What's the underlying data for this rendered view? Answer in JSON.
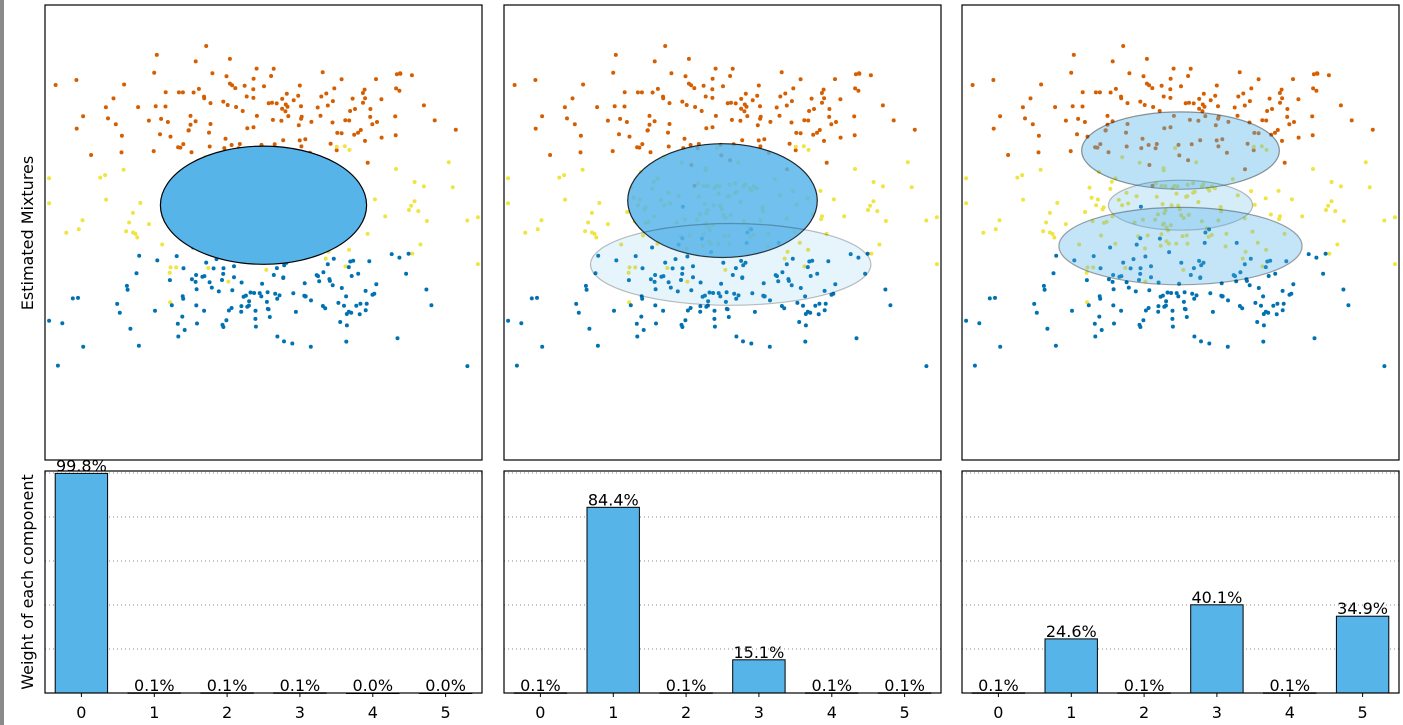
{
  "labels": {
    "top_ylabel": "Estimated Mixtures",
    "bottom_ylabel": "Weight of each component"
  },
  "colors": {
    "bar": "#56b4e9",
    "orange": "#d55e00",
    "yellow": "#f0e442",
    "blue": "#0072b2",
    "ellipse": "#56b4e9"
  },
  "chart_data": [
    {
      "type": "scatter",
      "panel": "mixtures-1",
      "series": [
        {
          "name": "",
          "color": "#d55e00",
          "cx": 0,
          "cy": 2.6,
          "sx": 2.2,
          "sy": 0.6,
          "n": 150
        },
        {
          "name": "",
          "color": "#f0e442",
          "cx": 0,
          "cy": 0.5,
          "sx": 2.2,
          "sy": 0.6,
          "n": 150
        },
        {
          "name": "",
          "color": "#0072b2",
          "cx": 0,
          "cy": -1.4,
          "sx": 2.2,
          "sy": 0.6,
          "n": 150
        }
      ],
      "ellipses": [
        {
          "cx": 0.0,
          "cy": 0.6,
          "rx": 2.5,
          "ry": 1.3,
          "opacity": 1.0
        }
      ]
    },
    {
      "type": "scatter",
      "panel": "mixtures-2",
      "series": [
        {
          "name": "",
          "color": "#d55e00",
          "cx": 0,
          "cy": 2.6,
          "sx": 2.2,
          "sy": 0.6,
          "n": 150
        },
        {
          "name": "",
          "color": "#f0e442",
          "cx": 0,
          "cy": 0.5,
          "sx": 2.2,
          "sy": 0.6,
          "n": 150
        },
        {
          "name": "",
          "color": "#0072b2",
          "cx": 0,
          "cy": -1.4,
          "sx": 2.2,
          "sy": 0.6,
          "n": 150
        }
      ],
      "ellipses": [
        {
          "cx": 0.0,
          "cy": 0.7,
          "rx": 2.3,
          "ry": 1.25,
          "opacity": 0.84
        },
        {
          "cx": 0.2,
          "cy": -0.7,
          "rx": 3.4,
          "ry": 0.9,
          "opacity": 0.15
        }
      ]
    },
    {
      "type": "scatter",
      "panel": "mixtures-3",
      "series": [
        {
          "name": "",
          "color": "#d55e00",
          "cx": 0,
          "cy": 2.6,
          "sx": 2.2,
          "sy": 0.6,
          "n": 150
        },
        {
          "name": "",
          "color": "#f0e442",
          "cx": 0,
          "cy": 0.5,
          "sx": 2.2,
          "sy": 0.6,
          "n": 150
        },
        {
          "name": "",
          "color": "#0072b2",
          "cx": 0,
          "cy": -1.4,
          "sx": 2.2,
          "sy": 0.6,
          "n": 150
        }
      ],
      "ellipses": [
        {
          "cx": 0.0,
          "cy": 1.8,
          "rx": 2.4,
          "ry": 0.85,
          "opacity": 0.4
        },
        {
          "cx": 0.0,
          "cy": 0.6,
          "rx": 1.75,
          "ry": 0.55,
          "opacity": 0.25
        },
        {
          "cx": 0.0,
          "cy": -0.3,
          "rx": 2.95,
          "ry": 0.85,
          "opacity": 0.35
        }
      ]
    },
    {
      "type": "bar",
      "panel": "weights-1",
      "categories": [
        "0",
        "1",
        "2",
        "3",
        "4",
        "5"
      ],
      "values": [
        0.998,
        0.001,
        0.001,
        0.001,
        0.0,
        0.0
      ],
      "labels": [
        "99.8%",
        "0.1%",
        "0.1%",
        "0.1%",
        "0.0%",
        "0.0%"
      ],
      "ylim": [
        0,
        1.0
      ],
      "grid": "y-dotted"
    },
    {
      "type": "bar",
      "panel": "weights-2",
      "categories": [
        "0",
        "1",
        "2",
        "3",
        "4",
        "5"
      ],
      "values": [
        0.001,
        0.844,
        0.001,
        0.151,
        0.001,
        0.001
      ],
      "labels": [
        "0.1%",
        "84.4%",
        "0.1%",
        "15.1%",
        "0.1%",
        "0.1%"
      ],
      "ylim": [
        0,
        1.0
      ],
      "grid": "y-dotted"
    },
    {
      "type": "bar",
      "panel": "weights-3",
      "categories": [
        "0",
        "1",
        "2",
        "3",
        "4",
        "5"
      ],
      "values": [
        0.001,
        0.246,
        0.001,
        0.401,
        0.001,
        0.349
      ],
      "labels": [
        "0.1%",
        "24.6%",
        "0.1%",
        "40.1%",
        "0.1%",
        "34.9%"
      ],
      "ylim": [
        0,
        1.0
      ],
      "grid": "y-dotted"
    }
  ]
}
